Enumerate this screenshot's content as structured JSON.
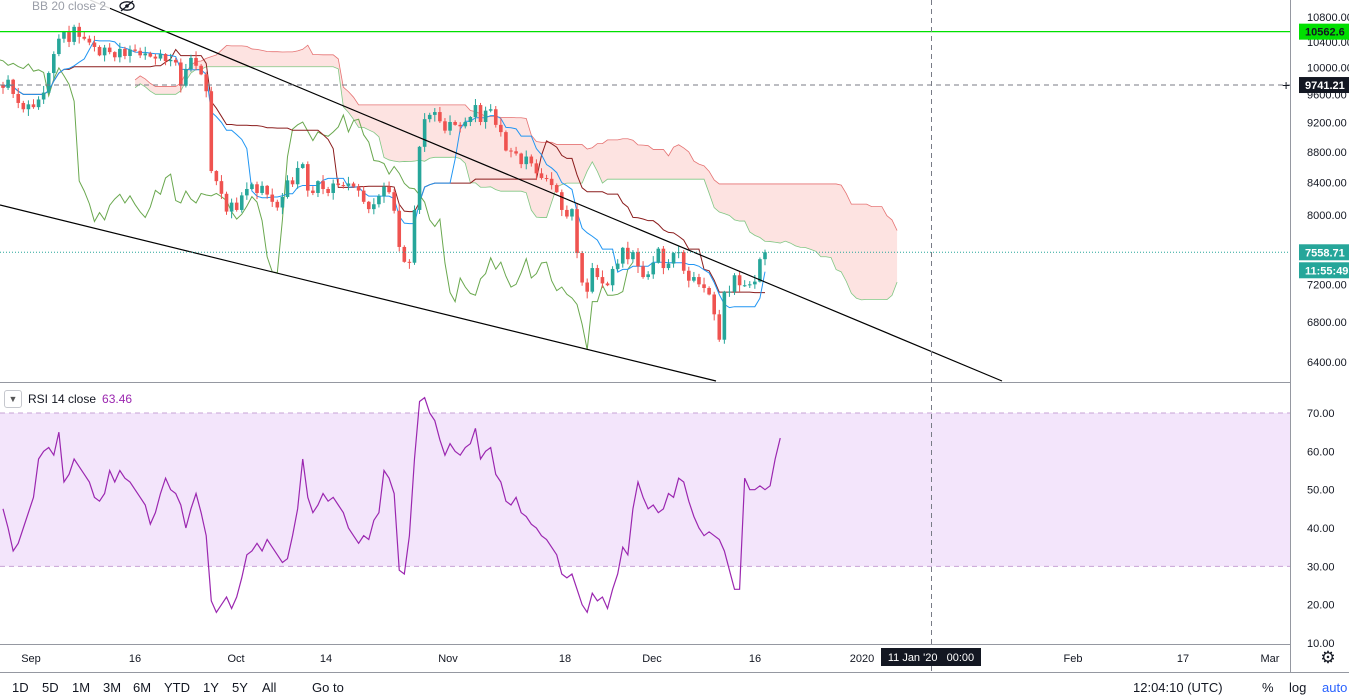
{
  "colors": {
    "up": "#26a69a",
    "down": "#ef5350",
    "resistance": "#00e000",
    "rsi": "#9b27b0",
    "rsi_band": "#f3e5fb",
    "cloud": "#fde0de",
    "tenkan": "#2196f3",
    "kijun": "#8b1d1d",
    "chikou": "#6aa84f",
    "trendline": "#000000",
    "crosshair": "#787b86",
    "label_bg": "#131722",
    "price_line": "#26a69a"
  },
  "overlay_legend": {
    "text": "BB 20 close 2",
    "hide_icon": "eye-crossed-icon"
  },
  "price_axis": {
    "ticks": [
      "10800.00",
      "10400.00",
      "10000.00",
      "9600.00",
      "9200.00",
      "8800.00",
      "8400.00",
      "8000.00",
      "7200.00",
      "6800.00",
      "6400.00"
    ],
    "resistance_label": "10562.6",
    "crosshair_label": "9741.21",
    "last_price_label": "7558.71",
    "countdown_label": "11:55:49"
  },
  "rsi_legend": {
    "name": "RSI 14 close",
    "value": "63.46"
  },
  "rsi_axis": {
    "ticks": [
      "70.00",
      "60.00",
      "50.00",
      "40.00",
      "30.00",
      "20.00",
      "10.00"
    ]
  },
  "time_axis": {
    "labels": [
      "Sep",
      "16",
      "Oct",
      "14",
      "Nov",
      "18",
      "Dec",
      "16",
      "2020",
      "Feb",
      "17",
      "Mar"
    ],
    "crosshair_label": "11 Jan '20   00:00"
  },
  "toolbar": {
    "ranges": [
      "1D",
      "5D",
      "1M",
      "3M",
      "6M",
      "YTD",
      "1Y",
      "5Y",
      "All"
    ],
    "goto": "Go to",
    "clock": "12:04:10 (UTC)",
    "percent": "%",
    "log": "log",
    "auto": "auto",
    "settings_icon": "gear-icon"
  },
  "chart_data": [
    {
      "type": "candlestick",
      "title": "",
      "x_range": [
        "2019-08-28",
        "2020-03-06"
      ],
      "ylim": [
        6200,
        11000
      ],
      "candles_close": [
        9700,
        9820,
        9610,
        9480,
        9390,
        9460,
        9420,
        9530,
        9630,
        9920,
        10210,
        10450,
        10560,
        10400,
        10640,
        10480,
        10450,
        10390,
        10320,
        10190,
        10310,
        10240,
        10160,
        10290,
        10180,
        10280,
        10260,
        10190,
        10220,
        10170,
        10140,
        10210,
        10100,
        10120,
        10080,
        9730,
        9980,
        10150,
        10030,
        9900,
        9650,
        8550,
        8420,
        8260,
        8040,
        8150,
        8060,
        8240,
        8320,
        8380,
        8270,
        8360,
        8250,
        8160,
        8090,
        8220,
        8430,
        8380,
        8590,
        8640,
        8300,
        8270,
        8420,
        8320,
        8270,
        8390,
        8370,
        8360,
        8390,
        8350,
        8300,
        8160,
        8070,
        8130,
        8230,
        8350,
        8280,
        8050,
        7620,
        7450,
        7440,
        8060,
        8870,
        9250,
        9310,
        9350,
        9220,
        9090,
        9210,
        9170,
        9150,
        9210,
        9280,
        9450,
        9210,
        9370,
        9390,
        9170,
        9070,
        8820,
        8810,
        8780,
        8640,
        8740,
        8650,
        8520,
        8460,
        8450,
        8370,
        8280,
        8060,
        7980,
        8070,
        7550,
        7220,
        7120,
        7380,
        7280,
        7210,
        7190,
        7370,
        7430,
        7610,
        7480,
        7560,
        7400,
        7280,
        7310,
        7440,
        7600,
        7380,
        7430,
        7550,
        7560,
        7350,
        7240,
        7280,
        7200,
        7160,
        7090,
        6880,
        6620,
        7120,
        7120,
        7300,
        7190,
        7190,
        7200,
        7230,
        7480,
        7558.71
      ],
      "tenkan": "blue conversion line",
      "kijun": "dark red base line",
      "chikou": "green lagging line",
      "cloud": "pink span shaded",
      "horizontal_lines": [
        10562.6,
        9741.21,
        7558.71
      ],
      "trendlines": "two black descending lines (falling wedge)"
    },
    {
      "type": "line",
      "title": "",
      "ylim": [
        10,
        75
      ],
      "band": [
        30,
        70
      ],
      "values": [
        45,
        40,
        34,
        36,
        40,
        44,
        48,
        58,
        60,
        61,
        59,
        65,
        52,
        54,
        58,
        56,
        54,
        52,
        48,
        47,
        49,
        55,
        52,
        55,
        53,
        52,
        50,
        48,
        46,
        41,
        44,
        49,
        53,
        50,
        49,
        46,
        40,
        45,
        49,
        44,
        38,
        21,
        18,
        20,
        22,
        19,
        22,
        27,
        33,
        34,
        36,
        34,
        37,
        35,
        33,
        31,
        32,
        38,
        45,
        58,
        48,
        44,
        46,
        49,
        47,
        48,
        46,
        44,
        40,
        38,
        36,
        38,
        37,
        42,
        44,
        55,
        53,
        49,
        29,
        28,
        38,
        58,
        73,
        74,
        70,
        68,
        63,
        59,
        62,
        60,
        59,
        61,
        62,
        66,
        58,
        60,
        61,
        54,
        52,
        47,
        46,
        48,
        44,
        43,
        41,
        40,
        38,
        37,
        35,
        33,
        28,
        27,
        28,
        24,
        20,
        18,
        23,
        21,
        22,
        19,
        24,
        28,
        35,
        33,
        45,
        52,
        48,
        45,
        46,
        44,
        45,
        49,
        48,
        53,
        52,
        47,
        43,
        40,
        38,
        39,
        38,
        37,
        34,
        29,
        24,
        24,
        53,
        50,
        50,
        51,
        50,
        51,
        58,
        63.46
      ]
    }
  ]
}
